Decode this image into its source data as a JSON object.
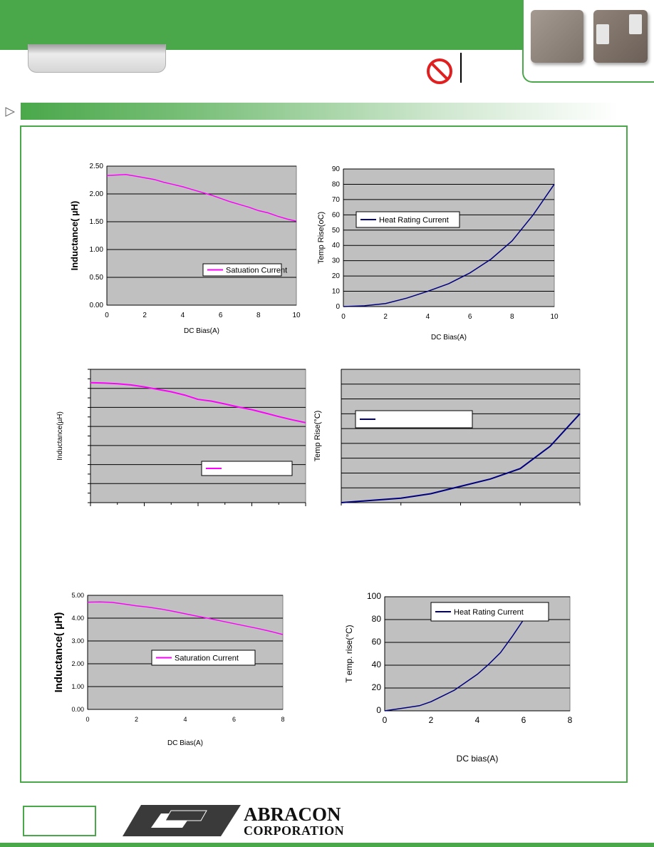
{
  "header": {
    "logo_line1": "ABRACON",
    "logo_line2": "CORPORATION"
  },
  "colors": {
    "brand_green": "#4aa84a",
    "plot_bg": "#c0c0c0",
    "saturation_line": "#ff00ff",
    "heat_line": "#00007f"
  },
  "icons": [
    "product-photo",
    "rohs-prohibited-icon",
    "triangle-arrow-icon",
    "abracon-logo-icon"
  ],
  "chart_data": [
    {
      "type": "line",
      "xlabel": "DC Bias(A)",
      "ylabel": "Inductance( µH)",
      "xlim": [
        0,
        10
      ],
      "ylim": [
        0,
        2.5
      ],
      "xticks": [
        "0",
        "2",
        "4",
        "6",
        "8",
        "10"
      ],
      "yticks": [
        "0.00",
        "0.50",
        "1.00",
        "1.50",
        "2.00",
        "2.50"
      ],
      "grid": "horizontal",
      "legend": "bottom-right",
      "series": [
        {
          "name": "Satuation Current",
          "color": "#ff00ff",
          "x": [
            0,
            0.5,
            1,
            1.5,
            2,
            2.5,
            3,
            3.5,
            4,
            4.5,
            5,
            5.5,
            6,
            6.5,
            7,
            7.5,
            8,
            8.5,
            9,
            9.5,
            10
          ],
          "y": [
            2.33,
            2.34,
            2.35,
            2.32,
            2.29,
            2.26,
            2.21,
            2.17,
            2.13,
            2.08,
            2.03,
            1.98,
            1.92,
            1.86,
            1.81,
            1.76,
            1.7,
            1.66,
            1.6,
            1.55,
            1.51
          ]
        }
      ]
    },
    {
      "type": "line",
      "xlabel": "DC Bias(A)",
      "ylabel": "Temp Rise(oC)",
      "xlim": [
        0,
        10
      ],
      "ylim": [
        0,
        90
      ],
      "xticks": [
        "0",
        "2",
        "4",
        "6",
        "8",
        "10"
      ],
      "yticks": [
        "0",
        "10",
        "20",
        "30",
        "40",
        "50",
        "60",
        "70",
        "80",
        "90"
      ],
      "grid": "horizontal",
      "legend": "top-left",
      "series": [
        {
          "name": "Heat Rating Current",
          "color": "#00007f",
          "x": [
            0,
            1,
            2,
            3,
            4,
            5,
            6,
            7,
            8,
            9,
            10
          ],
          "y": [
            0,
            0.5,
            2,
            5.5,
            10,
            15,
            22,
            31,
            43,
            60,
            80
          ]
        }
      ]
    },
    {
      "type": "line",
      "xlabel": "",
      "ylabel": "Inductance(µH)",
      "xlim": [
        0,
        8
      ],
      "ylim": [
        0,
        7
      ],
      "xticks": [],
      "yticks": [],
      "grid": "horizontal",
      "legend": "bottom-right",
      "series": [
        {
          "name": "",
          "color": "#ff00ff",
          "x": [
            0,
            0.5,
            1,
            1.5,
            2,
            2.5,
            3,
            3.5,
            4,
            4.5,
            5,
            5.5,
            6,
            6.5,
            7,
            7.5,
            8
          ],
          "y": [
            6.3,
            6.28,
            6.24,
            6.18,
            6.08,
            5.95,
            5.82,
            5.65,
            5.42,
            5.33,
            5.18,
            5.02,
            4.88,
            4.7,
            4.52,
            4.35,
            4.2
          ]
        }
      ]
    },
    {
      "type": "line",
      "xlabel": "",
      "ylabel": "Temp Rise(°C)",
      "xlim": [
        0,
        8
      ],
      "ylim": [
        0,
        90
      ],
      "xticks": [],
      "yticks": [],
      "grid": "horizontal",
      "legend": "top-left",
      "series": [
        {
          "name": "",
          "color": "#00007f",
          "x": [
            0,
            1,
            2,
            3,
            4,
            5,
            6,
            7,
            8
          ],
          "y": [
            0,
            1.5,
            3,
            6,
            11,
            16,
            23,
            38,
            60
          ]
        }
      ]
    },
    {
      "type": "line",
      "xlabel": "DC Bias(A)",
      "ylabel": "Inductance( µH)",
      "xlim": [
        0,
        8
      ],
      "ylim": [
        0,
        5
      ],
      "xticks": [
        "0",
        "2",
        "4",
        "6",
        "8"
      ],
      "yticks": [
        "0.00",
        "1.00",
        "2.00",
        "3.00",
        "4.00",
        "5.00"
      ],
      "grid": "horizontal",
      "legend": "bottom-right",
      "series": [
        {
          "name": "Saturation Current",
          "color": "#ff00ff",
          "x": [
            0,
            0.5,
            1,
            1.5,
            2,
            2.5,
            3,
            3.5,
            4,
            4.5,
            5,
            5.5,
            6,
            6.5,
            7,
            7.5,
            8
          ],
          "y": [
            4.7,
            4.71,
            4.69,
            4.62,
            4.54,
            4.48,
            4.4,
            4.3,
            4.19,
            4.08,
            3.98,
            3.87,
            3.76,
            3.65,
            3.54,
            3.42,
            3.28
          ]
        }
      ]
    },
    {
      "type": "line",
      "xlabel": "DC bias(A)",
      "ylabel": "T emp. rise(°C)",
      "xlim": [
        0,
        8
      ],
      "ylim": [
        0,
        100
      ],
      "xticks": [
        "0",
        "2",
        "4",
        "6",
        "8"
      ],
      "yticks": [
        "0",
        "20",
        "40",
        "60",
        "80",
        "100"
      ],
      "grid": "horizontal",
      "legend": "top-right",
      "series": [
        {
          "name": "Heat Rating Current",
          "color": "#00007f",
          "x": [
            0,
            0.5,
            1,
            1.5,
            2,
            2.5,
            3,
            3.5,
            4,
            4.5,
            5,
            5.5,
            6
          ],
          "y": [
            0,
            1.5,
            3,
            4.5,
            8,
            13,
            18,
            25,
            32,
            41,
            51,
            65,
            80
          ]
        }
      ]
    }
  ]
}
